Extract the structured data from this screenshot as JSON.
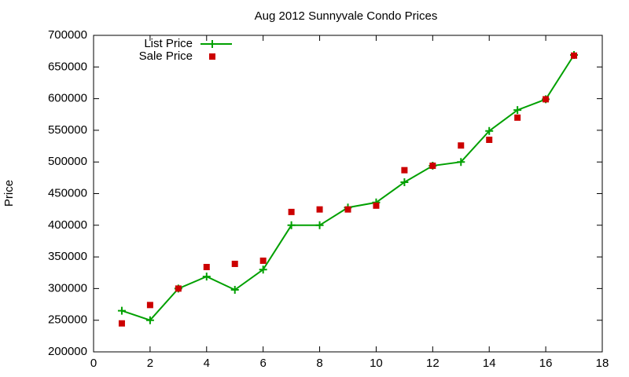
{
  "chart_data": {
    "type": "line",
    "title": "Aug 2012 Sunnyvale Condo Prices",
    "ylabel": "Price",
    "x": [
      1,
      2,
      3,
      4,
      5,
      6,
      7,
      8,
      9,
      10,
      11,
      12,
      13,
      14,
      15,
      16,
      17
    ],
    "series": [
      {
        "name": "List Price",
        "color": "#00a000",
        "style": "linespoints",
        "values": [
          265000,
          250000,
          300000,
          319000,
          298000,
          330000,
          400000,
          400000,
          428000,
          436000,
          468000,
          494000,
          500000,
          549000,
          582000,
          599000,
          669000
        ]
      },
      {
        "name": "Sale Price",
        "color": "#cc0000",
        "style": "points",
        "values": [
          245000,
          274000,
          300000,
          334000,
          339000,
          344000,
          421000,
          425000,
          425000,
          431000,
          487000,
          494000,
          526000,
          535000,
          570000,
          599000,
          668000
        ]
      }
    ],
    "xlim": [
      0,
      18
    ],
    "xticks": [
      0,
      2,
      4,
      6,
      8,
      10,
      12,
      14,
      16,
      18
    ],
    "ylim": [
      200000,
      700000
    ],
    "yticks": [
      200000,
      250000,
      300000,
      350000,
      400000,
      450000,
      500000,
      550000,
      600000,
      650000,
      700000
    ],
    "legend": "top left"
  }
}
